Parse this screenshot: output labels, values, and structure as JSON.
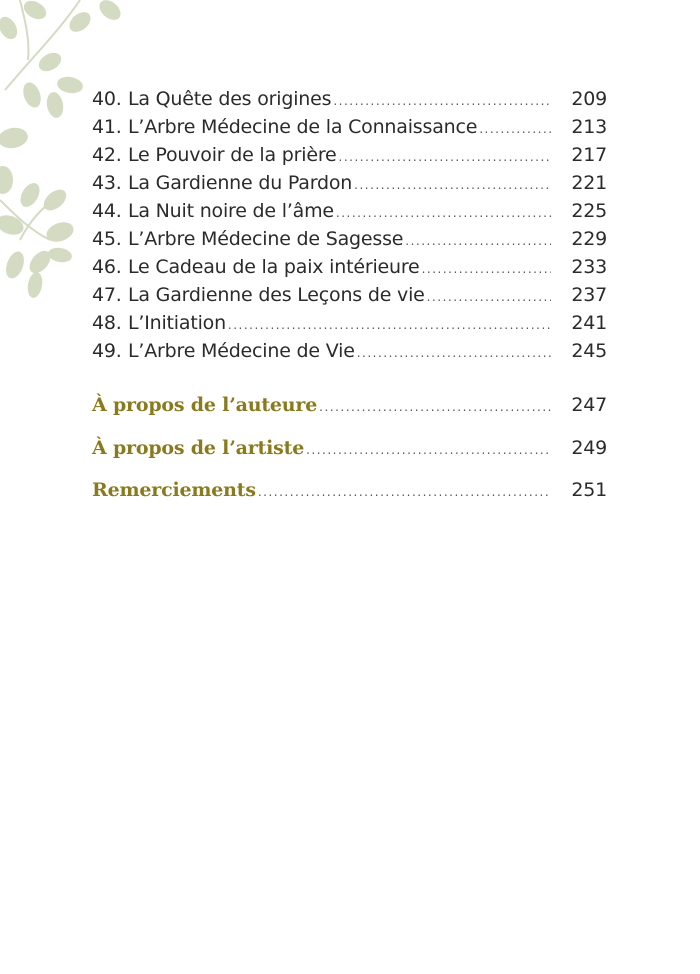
{
  "entries": [
    {
      "num": "40.",
      "title": "La Quête des origines",
      "page": "209"
    },
    {
      "num": "41.",
      "title": "L’Arbre Médecine de la Connaissance",
      "page": "213"
    },
    {
      "num": "42.",
      "title": "Le Pouvoir de la prière",
      "page": "217"
    },
    {
      "num": "43.",
      "title": "La Gardienne du Pardon",
      "page": "221"
    },
    {
      "num": "44.",
      "title": "La Nuit noire de l’âme",
      "page": "225"
    },
    {
      "num": "45.",
      "title": "L’Arbre Médecine de Sagesse",
      "page": "229"
    },
    {
      "num": "46.",
      "title": "Le Cadeau de la paix intérieure",
      "page": "233"
    },
    {
      "num": "47.",
      "title": "La Gardienne des Leçons de vie",
      "page": "237"
    },
    {
      "num": "48.",
      "title": "L’Initiation",
      "page": "241"
    },
    {
      "num": "49.",
      "title": "L’Arbre Médecine de Vie",
      "page": "245"
    }
  ],
  "back_matter": [
    {
      "title": "À propos de l’auteure",
      "page": "247"
    },
    {
      "title": "À propos de l’artiste",
      "page": "249"
    },
    {
      "title": "Remerciements",
      "page": "251"
    }
  ],
  "colors": {
    "heading": "#8a7a1e",
    "leaf": "#d3dbc2",
    "text": "#2b2b2b"
  },
  "decoration": "leaf-vine-icon"
}
